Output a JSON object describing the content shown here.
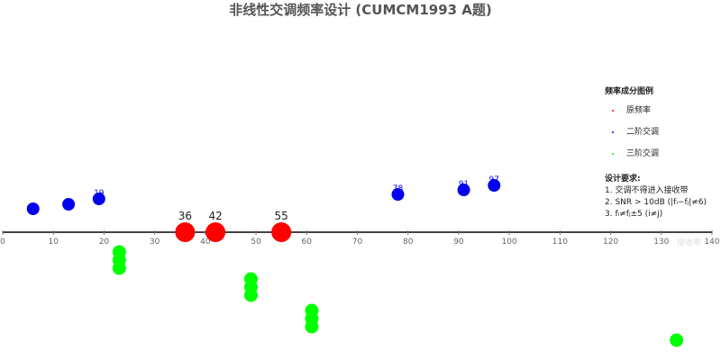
{
  "chart_data": {
    "type": "scatter",
    "title": "非线性交调频率设计 (CUMCM1993 A题)",
    "xlim": [
      0,
      140
    ],
    "xticks": [
      0,
      10,
      20,
      30,
      40,
      50,
      60,
      70,
      80,
      90,
      100,
      110,
      120,
      130,
      140
    ],
    "axis_end_label": "接收带",
    "series": [
      {
        "name": "原频率",
        "color": "#ff0000",
        "shape": "circle",
        "x": [
          36,
          42,
          55
        ],
        "labels": [
          "36",
          "42",
          "55"
        ]
      },
      {
        "name": "二阶交调",
        "color": "#0000ee",
        "shape": "circle",
        "x": [
          6,
          13,
          19,
          78,
          91,
          97
        ],
        "labels": [
          "",
          "",
          "19",
          "78",
          "91",
          "97"
        ]
      },
      {
        "name": "三阶交调",
        "color": "#00ff00",
        "shape": "stack",
        "x": [
          23,
          49,
          61,
          133
        ],
        "counts": [
          3,
          3,
          3,
          1
        ]
      }
    ],
    "legend": {
      "title": "频率成分图例",
      "position": "right"
    },
    "requirements": {
      "title": "设计要求:",
      "items": [
        "1. 交调不得进入接收带",
        "2. SNR > 10dB (|fᵢ−fⱼ|≠6)",
        "3. fᵢ≠fⱼ±5 (i≠j)"
      ]
    }
  }
}
